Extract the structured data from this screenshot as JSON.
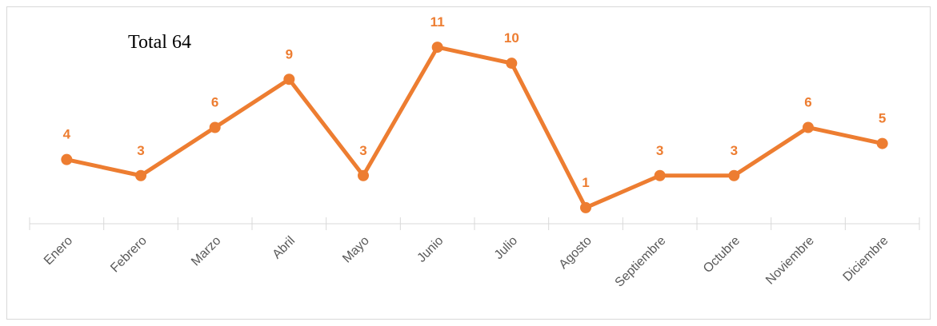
{
  "chart_data": {
    "type": "line",
    "annotation": "Total 64",
    "categories": [
      "Enero",
      "Febrero",
      "Marzo",
      "Abril",
      "Mayo",
      "Junio",
      "Julio",
      "Agosto",
      "Septiembre",
      "Octubre",
      "Noviembre",
      "Diciembre"
    ],
    "values": [
      4,
      3,
      6,
      9,
      3,
      11,
      10,
      1,
      3,
      3,
      6,
      5
    ],
    "color": "#ED7D31",
    "ylim": [
      0,
      12
    ]
  }
}
